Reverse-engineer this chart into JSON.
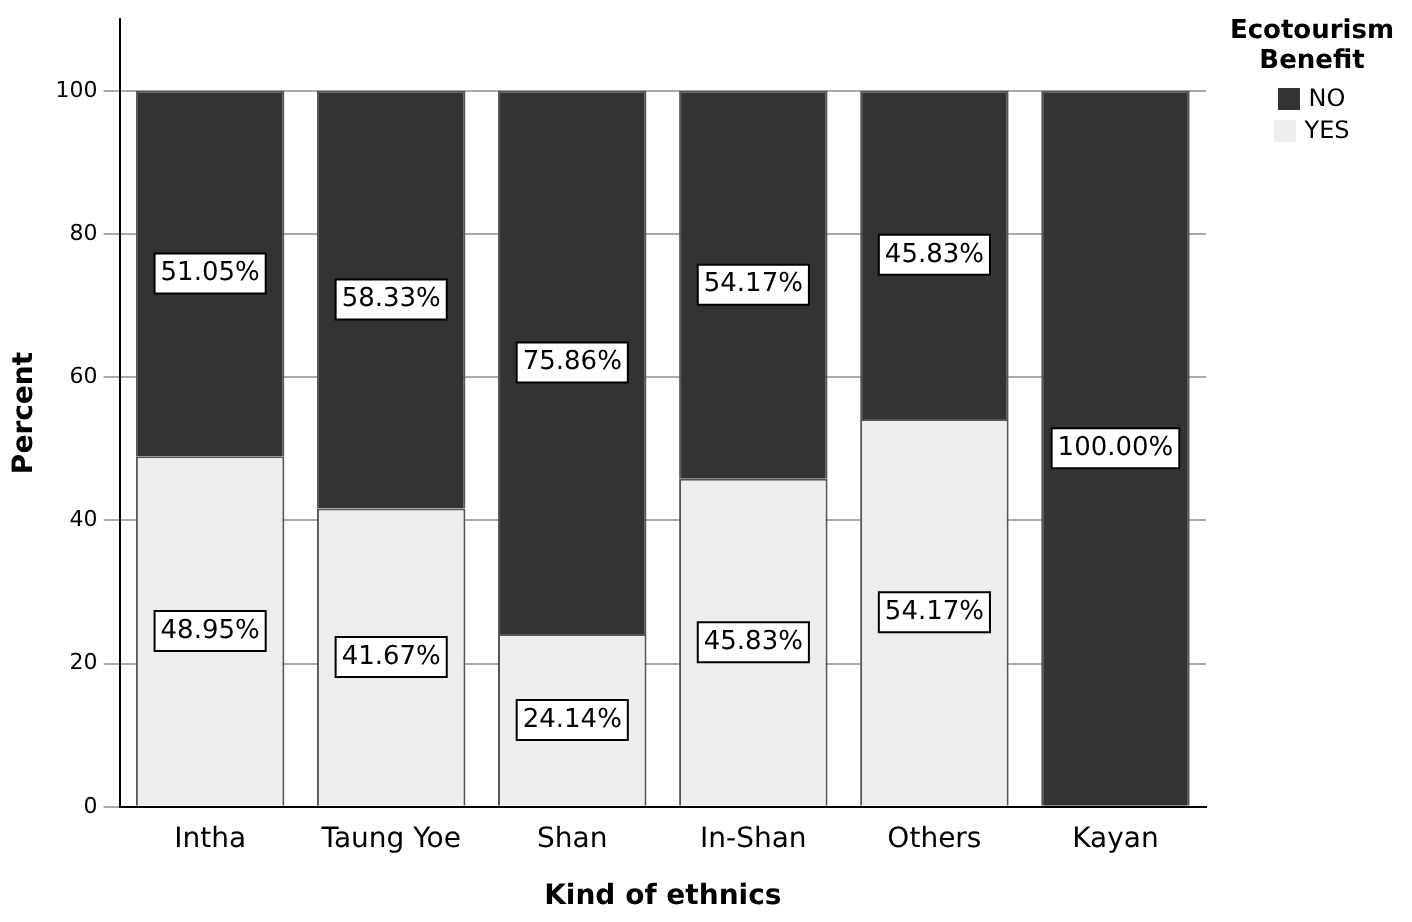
{
  "chart_data": {
    "type": "bar",
    "stacked": true,
    "xlabel": "Kind of ethnics",
    "ylabel": "Percent",
    "legend_title": "Ecotourism Benefit",
    "legend": "top right",
    "grid": "y",
    "categories": [
      "Intha",
      "Taung Yoe",
      "Shan",
      "In-Shan",
      "Others",
      "Kayan"
    ],
    "ylim": [
      0,
      110
    ],
    "yticks": [
      0,
      20,
      40,
      60,
      80,
      100
    ],
    "series": [
      {
        "name": "YES",
        "color": "#eeeeee",
        "values": [
          48.95,
          41.67,
          24.14,
          45.83,
          54.17,
          0
        ],
        "value_labels": [
          "48.95%",
          "41.67%",
          "24.14%",
          "45.83%",
          "54.17%",
          null
        ]
      },
      {
        "name": "NO",
        "color": "#333333",
        "values": [
          51.05,
          58.33,
          75.86,
          54.17,
          45.83,
          100
        ],
        "value_labels": [
          "51.05%",
          "58.33%",
          "75.86%",
          "54.17%",
          "45.83%",
          "100.00%"
        ]
      }
    ]
  }
}
